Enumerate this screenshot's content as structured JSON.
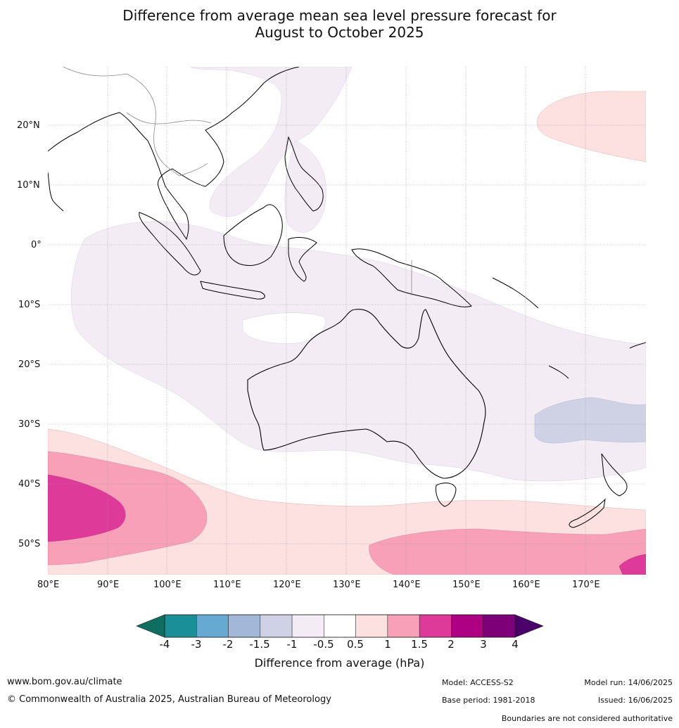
{
  "title": {
    "line1": "Difference from average mean sea level pressure forecast for",
    "line2": "August to October 2025"
  },
  "map": {
    "lon_labels": [
      "80°E",
      "90°E",
      "100°E",
      "110°E",
      "120°E",
      "130°E",
      "140°E",
      "150°E",
      "160°E",
      "170°E"
    ],
    "lat_labels": [
      "20°N",
      "10°N",
      "0°",
      "10°S",
      "20°S",
      "30°S",
      "40°S",
      "50°S"
    ]
  },
  "colorbar": {
    "label": "Difference from average (hPa)",
    "ticks": [
      "-4",
      "-3",
      "-2",
      "-1.5",
      "-1",
      "-0.5",
      "0.5",
      "1",
      "1.5",
      "2",
      "3",
      "4"
    ],
    "colors": [
      "#1b8f98",
      "#66a9d1",
      "#a3b8d8",
      "#cfd1e5",
      "#f3ecf4",
      "#ffffff",
      "#fde0e0",
      "#f7a0b8",
      "#de3a9a",
      "#ad0082",
      "#7d0078"
    ],
    "under_color": "#0e6e60",
    "over_color": "#4b006a"
  },
  "footer": {
    "site": "www.bom.gov.au/climate",
    "copyright": "© Commonwealth of Australia 2025, Australian Bureau of Meteorology",
    "model": "Model: ACCESS-S2",
    "base_period": "Base period: 1981-2018",
    "model_run": "Model run: 14/06/2025",
    "issued": "Issued: 16/06/2025",
    "disclaimer": "Boundaries are not considered authoritative"
  }
}
